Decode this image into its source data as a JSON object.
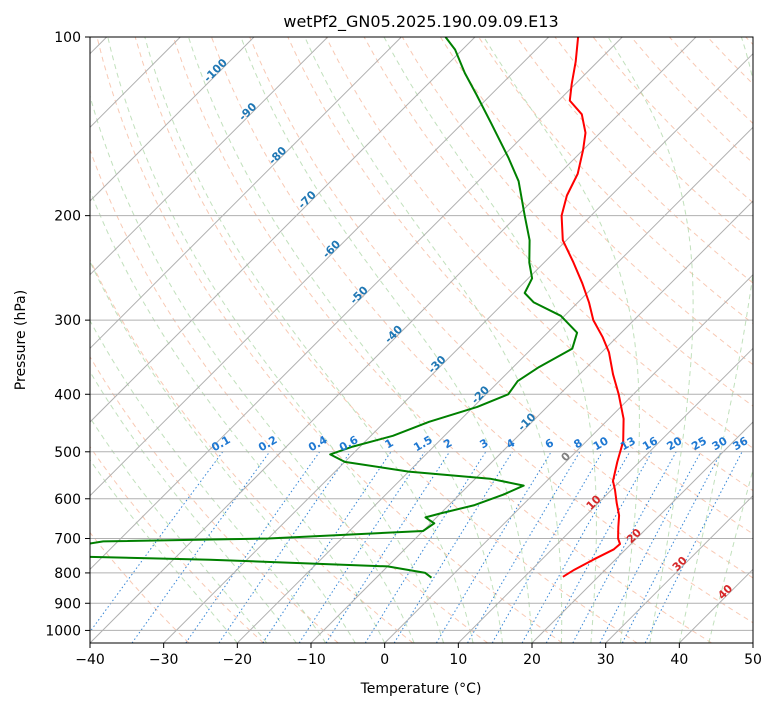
{
  "chart_data": {
    "type": "skew-t",
    "title": "wetPf2_GN05.2025.190.09.09.E13",
    "xlabel": "Temperature (°C)",
    "ylabel": "Pressure (hPa)",
    "xlim": [
      -40,
      50
    ],
    "ylim": [
      1050,
      100
    ],
    "y_scale": "log",
    "grid": true,
    "xticks": [
      -40,
      -30,
      -20,
      -10,
      0,
      10,
      20,
      30,
      40,
      50
    ],
    "yticks": [
      100,
      200,
      300,
      400,
      500,
      600,
      700,
      800,
      900,
      1000
    ],
    "series": [
      {
        "name": "",
        "role": "temperature",
        "color": "#ff0000",
        "points": [
          {
            "p": 812,
            "t": 15.2
          },
          {
            "p": 790,
            "t": 15.8
          },
          {
            "p": 760,
            "t": 17.0
          },
          {
            "p": 730,
            "t": 18.4
          },
          {
            "p": 715,
            "t": 18.5
          },
          {
            "p": 700,
            "t": 17.5
          },
          {
            "p": 670,
            "t": 16.0
          },
          {
            "p": 640,
            "t": 14.5
          },
          {
            "p": 610,
            "t": 12.5
          },
          {
            "p": 580,
            "t": 10.5
          },
          {
            "p": 560,
            "t": 9.0
          },
          {
            "p": 520,
            "t": 7.0
          },
          {
            "p": 480,
            "t": 5.0
          },
          {
            "p": 440,
            "t": 2.0
          },
          {
            "p": 400,
            "t": -2.0
          },
          {
            "p": 370,
            "t": -5.5
          },
          {
            "p": 340,
            "t": -9.0
          },
          {
            "p": 320,
            "t": -12.0
          },
          {
            "p": 300,
            "t": -15.5
          },
          {
            "p": 280,
            "t": -18.5
          },
          {
            "p": 260,
            "t": -22.0
          },
          {
            "p": 240,
            "t": -26.0
          },
          {
            "p": 220,
            "t": -30.5
          },
          {
            "p": 200,
            "t": -34.0
          },
          {
            "p": 185,
            "t": -36.0
          },
          {
            "p": 170,
            "t": -37.5
          },
          {
            "p": 155,
            "t": -40.0
          },
          {
            "p": 145,
            "t": -42.0
          },
          {
            "p": 135,
            "t": -45.0
          },
          {
            "p": 128,
            "t": -48.5
          },
          {
            "p": 120,
            "t": -50.5
          },
          {
            "p": 110,
            "t": -53.0
          },
          {
            "p": 100,
            "t": -56.0
          }
        ]
      },
      {
        "name": "",
        "role": "dewpoint",
        "color": "#008000",
        "points": [
          {
            "p": 815,
            "t": -2.5
          },
          {
            "p": 800,
            "t": -4.0
          },
          {
            "p": 780,
            "t": -10.0
          },
          {
            "p": 760,
            "t": -35.0
          },
          {
            "p": 750,
            "t": -55.0
          },
          {
            "p": 740,
            "t": -60.0
          },
          {
            "p": 708,
            "t": -52.0
          },
          {
            "p": 700,
            "t": -30.0
          },
          {
            "p": 680,
            "t": -10.0
          },
          {
            "p": 660,
            "t": -9.5
          },
          {
            "p": 645,
            "t": -11.5
          },
          {
            "p": 635,
            "t": -10.0
          },
          {
            "p": 615,
            "t": -6.5
          },
          {
            "p": 590,
            "t": -4.0
          },
          {
            "p": 570,
            "t": -2.5
          },
          {
            "p": 555,
            "t": -8.0
          },
          {
            "p": 540,
            "t": -20.0
          },
          {
            "p": 520,
            "t": -30.0
          },
          {
            "p": 505,
            "t": -33.0
          },
          {
            "p": 490,
            "t": -31.0
          },
          {
            "p": 470,
            "t": -27.0
          },
          {
            "p": 445,
            "t": -24.0
          },
          {
            "p": 420,
            "t": -19.5
          },
          {
            "p": 400,
            "t": -17.0
          },
          {
            "p": 380,
            "t": -17.5
          },
          {
            "p": 360,
            "t": -16.5
          },
          {
            "p": 335,
            "t": -14.5
          },
          {
            "p": 315,
            "t": -16.0
          },
          {
            "p": 295,
            "t": -20.5
          },
          {
            "p": 280,
            "t": -26.0
          },
          {
            "p": 270,
            "t": -28.5
          },
          {
            "p": 255,
            "t": -29.5
          },
          {
            "p": 240,
            "t": -32.0
          },
          {
            "p": 220,
            "t": -35.0
          },
          {
            "p": 200,
            "t": -39.0
          },
          {
            "p": 175,
            "t": -44.5
          },
          {
            "p": 160,
            "t": -49.0
          },
          {
            "p": 140,
            "t": -56.0
          },
          {
            "p": 125,
            "t": -62.0
          },
          {
            "p": 115,
            "t": -66.5
          },
          {
            "p": 105,
            "t": -71.0
          },
          {
            "p": 100,
            "t": -74.0
          }
        ]
      }
    ],
    "dry_adiabat_labels": [
      "-100",
      "-90",
      "-80",
      "-70",
      "-60",
      "-50",
      "-40",
      "-30",
      "-20",
      "-10",
      "0",
      "10",
      "20",
      "30",
      "40"
    ],
    "mixing_ratio_labels": [
      "0.1",
      "0.2",
      "0.4",
      "0.6",
      "1",
      "1.5",
      "2",
      "3",
      "4",
      "6",
      "8",
      "10",
      "13",
      "16",
      "20",
      "25",
      "30",
      "36"
    ],
    "colors": {
      "isotherm": "#b0b0b0",
      "isobar": "#b0b0b0",
      "dry_adiabat": "#f4a582",
      "moist_adiabat": "#a6d3a0",
      "mixing_ratio": "#1e78d2",
      "label_cold": "#1f77b4",
      "label_gray": "#808080",
      "label_warm": "#d62728"
    }
  }
}
